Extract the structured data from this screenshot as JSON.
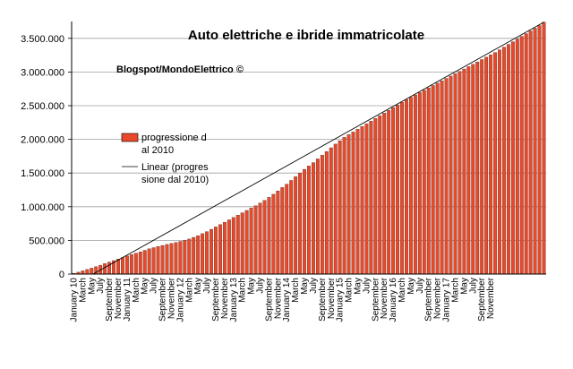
{
  "chart_data": {
    "type": "bar",
    "title": "Auto elettriche e ibride immatricolate",
    "subtitle": "Blogspot/MondoElettrico ©",
    "xlabel": "",
    "ylabel": "",
    "ylim": [
      0,
      3750000
    ],
    "yticks": [
      0,
      500000,
      1000000,
      1500000,
      2000000,
      2500000,
      3000000,
      3500000
    ],
    "ytick_labels": [
      "0",
      "500.000",
      "1.000.000",
      "1.500.000",
      "2.000.000",
      "2.500.000",
      "3.000.000",
      "3.500.000"
    ],
    "grid": true,
    "legend_position": "left-middle",
    "series": [
      {
        "name": "progressione dal 2010",
        "legend_lines": [
          "progressione d",
          "al 2010"
        ],
        "kind": "bar",
        "color": "#e8492a",
        "values": [
          12000,
          28000,
          48000,
          68000,
          88000,
          110000,
          132000,
          155000,
          178000,
          200000,
          222000,
          245000,
          268000,
          290000,
          310000,
          330000,
          352000,
          375000,
          392000,
          410000,
          425000,
          440000,
          455000,
          470000,
          485000,
          500000,
          520000,
          545000,
          570000,
          600000,
          630000,
          665000,
          700000,
          735000,
          770000,
          805000,
          840000,
          875000,
          910000,
          945000,
          980000,
          1015000,
          1055000,
          1095000,
          1140000,
          1185000,
          1235000,
          1285000,
          1335000,
          1390000,
          1445000,
          1500000,
          1555000,
          1605000,
          1655000,
          1710000,
          1765000,
          1820000,
          1875000,
          1930000,
          1980000,
          2030000,
          2070000,
          2110000,
          2150000,
          2190000,
          2230000,
          2270000,
          2310000,
          2350000,
          2390000,
          2430000,
          2470000,
          2510000,
          2550000,
          2590000,
          2625000,
          2660000,
          2695000,
          2730000,
          2765000,
          2800000,
          2835000,
          2870000,
          2905000,
          2940000,
          2975000,
          3010000,
          3045000,
          3080000,
          3115000,
          3150000,
          3185000,
          3220000,
          3255000,
          3290000,
          3330000,
          3370000,
          3410000,
          3450000,
          3490000,
          3530000,
          3570000,
          3610000,
          3650000,
          3690000,
          3740000
        ]
      },
      {
        "name": "Linear (progressione dal 2010)",
        "legend_lines": [
          "Linear (progres",
          "sione dal 2010)"
        ],
        "kind": "trendline",
        "color": "#000000",
        "endpoints": [
          [
            0,
            -160000
          ],
          [
            106,
            3740000
          ]
        ]
      }
    ],
    "categories_labeled": [
      "January 10",
      "March",
      "May",
      "July",
      "September",
      "November",
      "January 11",
      "March",
      "May",
      "July",
      "September",
      "November",
      "January 12",
      "March",
      "May",
      "July",
      "September",
      "November",
      "January 13",
      "March",
      "May",
      "July",
      "September",
      "November",
      "January 14",
      "March",
      "May",
      "July",
      "September",
      "November",
      "January 15",
      "March",
      "May",
      "July",
      "September",
      "November",
      "January 16",
      "March",
      "May",
      "July",
      "September",
      "November",
      "January 17",
      "March",
      "May",
      "July",
      "September",
      "November"
    ]
  }
}
